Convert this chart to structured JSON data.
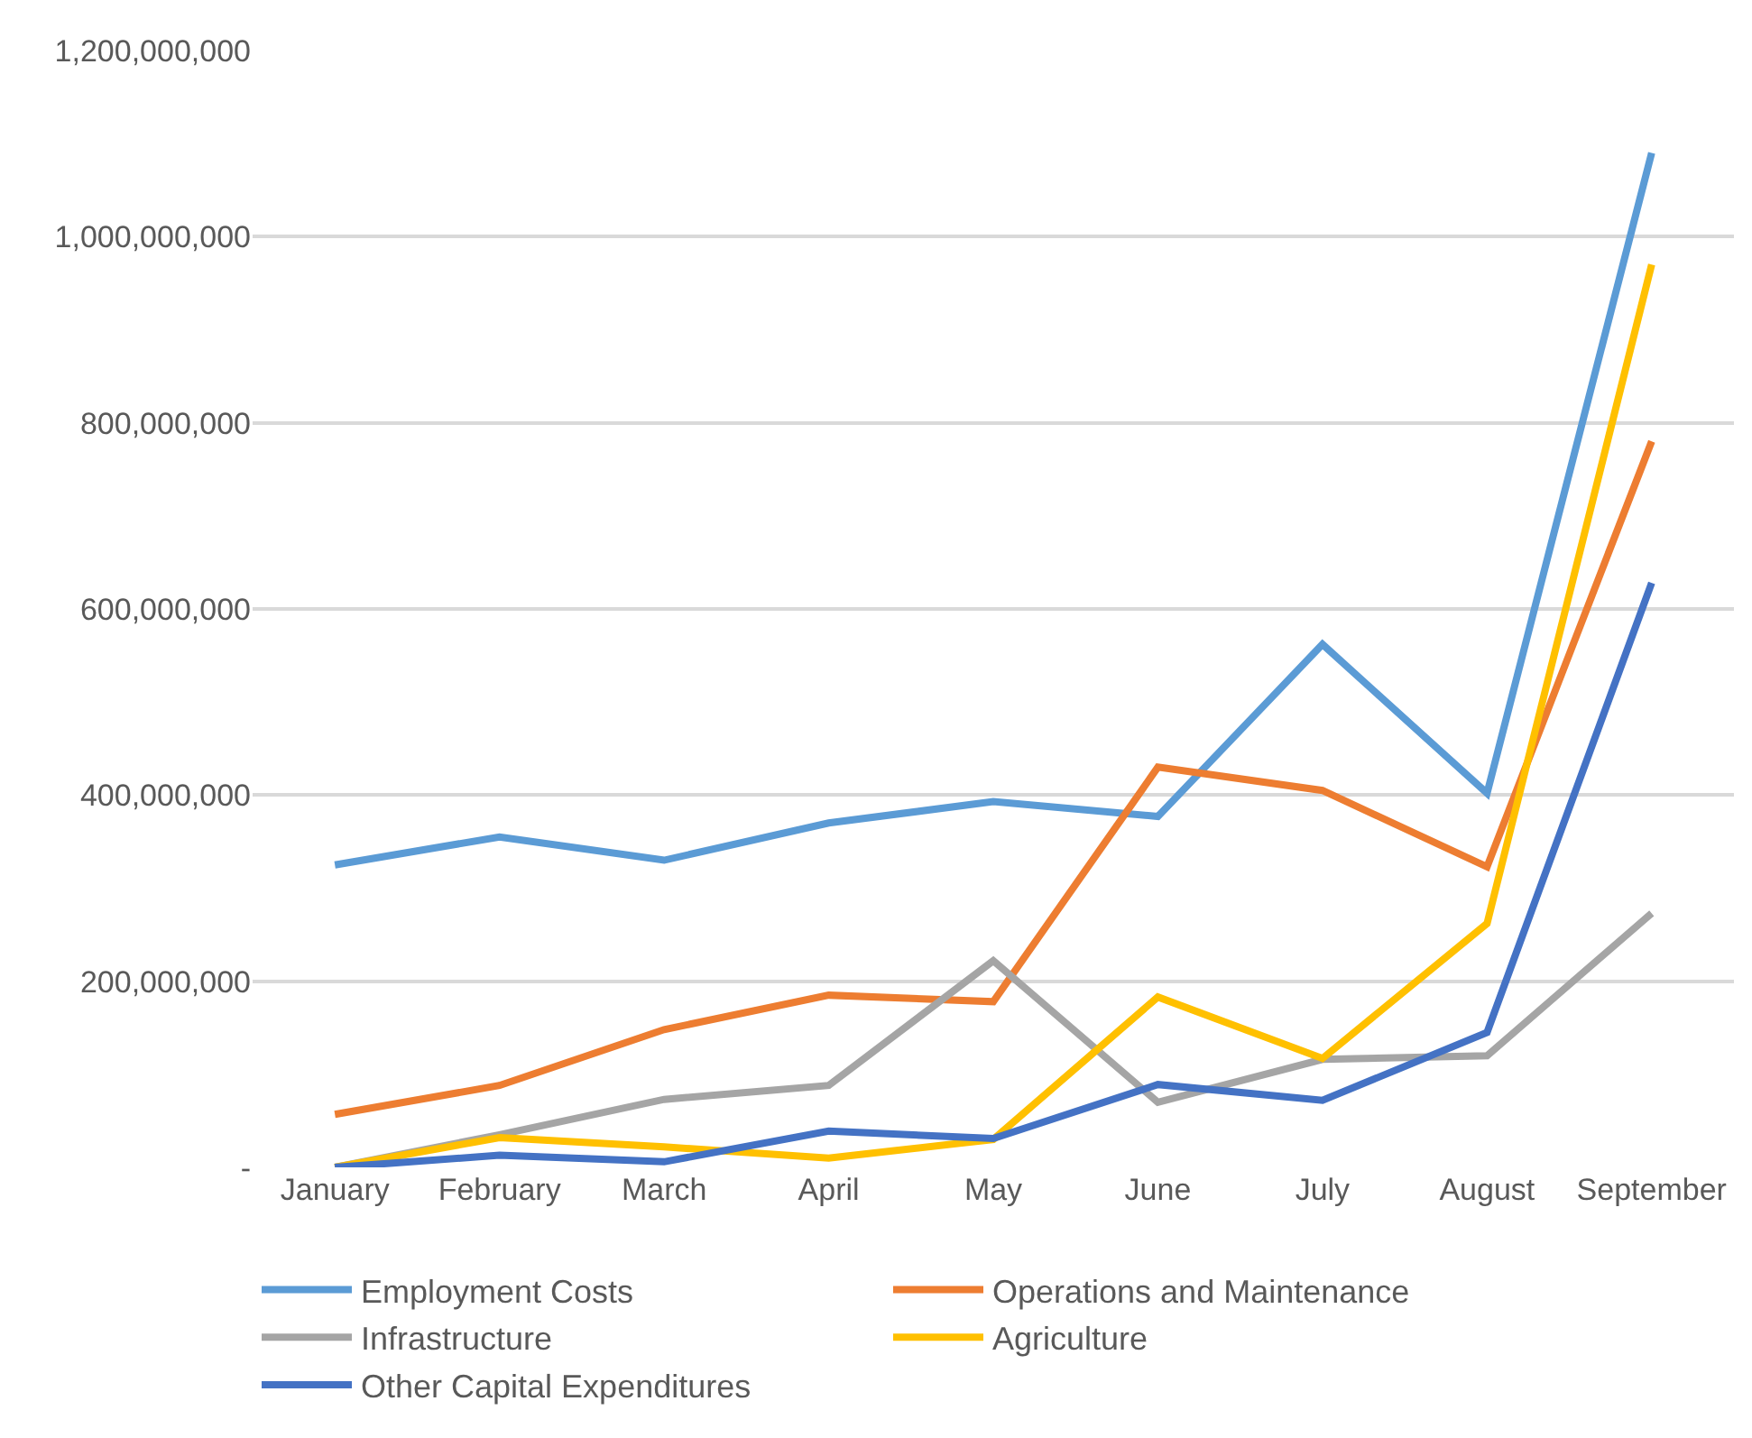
{
  "chart_data": {
    "type": "line",
    "categories": [
      "January",
      "February",
      "March",
      "April",
      "May",
      "June",
      "July",
      "August",
      "September"
    ],
    "series": [
      {
        "name": "Employment Costs",
        "color": "#5b9bd5",
        "values": [
          325000000,
          355000000,
          330000000,
          370000000,
          393000000,
          377000000,
          562000000,
          402000000,
          1090000000
        ]
      },
      {
        "name": "Operations and Maintenance",
        "color": "#ed7d31",
        "values": [
          57000000,
          88000000,
          148000000,
          185000000,
          178000000,
          430000000,
          405000000,
          323000000,
          780000000
        ]
      },
      {
        "name": "Infrastructure",
        "color": "#a5a5a5",
        "values": [
          0,
          35000000,
          73000000,
          88000000,
          222000000,
          70000000,
          116000000,
          120000000,
          273000000
        ]
      },
      {
        "name": "Agriculture",
        "color": "#ffc000",
        "values": [
          0,
          32000000,
          22000000,
          10000000,
          30000000,
          183000000,
          117000000,
          262000000,
          970000000
        ]
      },
      {
        "name": "Other Capital Expenditures",
        "color": "#4472c4",
        "values": [
          0,
          13000000,
          6000000,
          39000000,
          31000000,
          89000000,
          72000000,
          145000000,
          628000000
        ]
      }
    ],
    "ylim": [
      0,
      1200000000
    ],
    "yticks": [
      {
        "value": 0,
        "label": "-"
      },
      {
        "value": 200000000,
        "label": "200,000,000"
      },
      {
        "value": 400000000,
        "label": "400,000,000"
      },
      {
        "value": 600000000,
        "label": "600,000,000"
      },
      {
        "value": 800000000,
        "label": "800,000,000"
      },
      {
        "value": 1000000000,
        "label": "1,000,000,000"
      },
      {
        "value": 1200000000,
        "label": "1,200,000,000"
      }
    ],
    "grid": "y",
    "legend": "bottom",
    "marker": "none",
    "line_style": "solid"
  }
}
